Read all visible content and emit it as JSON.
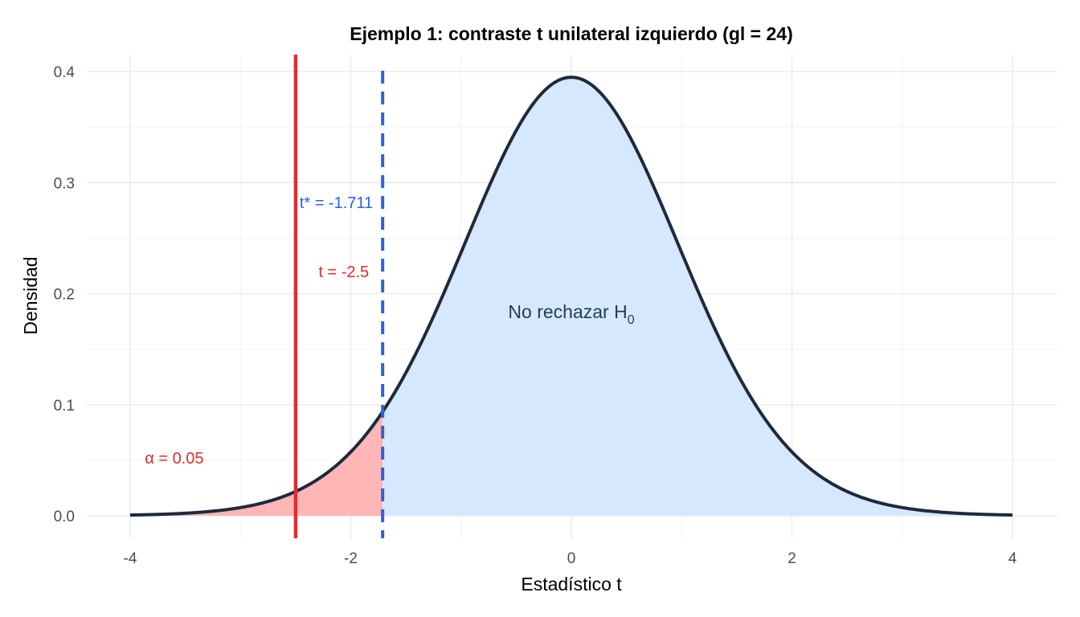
{
  "chart_data": {
    "type": "area",
    "title": "Ejemplo 1: contraste t unilateral izquierdo (gl = 24)",
    "xlabel": "Estadístico t",
    "ylabel": "Densidad",
    "xlim": [
      -4,
      4
    ],
    "ylim": [
      0,
      0.4
    ],
    "x_ticks": [
      -4,
      -2,
      0,
      2,
      4
    ],
    "x_tick_labels": [
      "-4",
      "-2",
      "0",
      "2",
      "4"
    ],
    "y_ticks": [
      0,
      0.1,
      0.2,
      0.3,
      0.4
    ],
    "y_tick_labels": [
      "0.0",
      "0.1",
      "0.2",
      "0.3",
      "0.4"
    ],
    "grid": true,
    "distribution": {
      "name": "t",
      "df": 24
    },
    "critical_value": -1.711,
    "t_statistic": -2.5,
    "alpha": 0.05,
    "annotations": {
      "critical_label": "t* = -1.711",
      "statistic_label": "t = -2.5",
      "alpha_label_symbol": "α",
      "alpha_label_value": " = 0.05",
      "accept_label_text": "No rechazar H",
      "accept_label_sub": "0"
    },
    "colors": {
      "curve": "#1e2a3c",
      "rejection_fill": "#ffb6b6",
      "acceptance_fill": "#d6e8fd",
      "statistic_line": "#dc2f2f",
      "critical_line": "#2a63e0",
      "grid_major": "#ebebeb",
      "grid_minor": "#f3f3f3"
    }
  }
}
